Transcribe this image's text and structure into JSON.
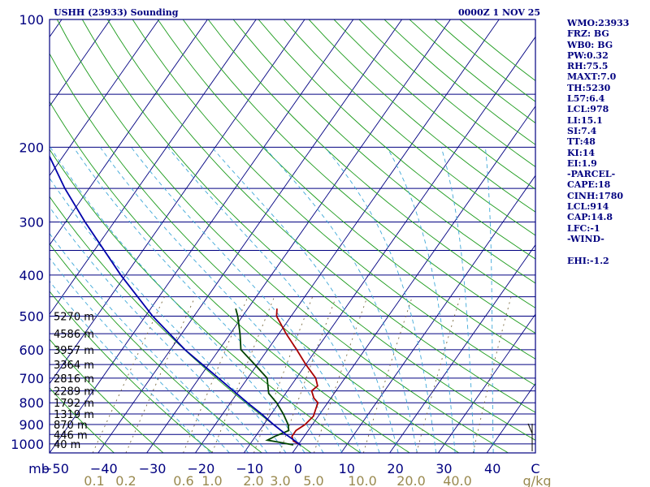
{
  "header": {
    "station_title": "USHH (23933) Sounding",
    "time": "0000Z  1 NOV 25"
  },
  "indices": [
    "WMO:23933",
    "FRZ: BG",
    "WB0: BG",
    "PW:0.32",
    "RH:75.5",
    "MAXT:7.0",
    "TH:5230",
    "L57:6.4",
    "LCL:978",
    "LI:15.1",
    "SI:7.4",
    "TT:48",
    "KI:14",
    "EI:1.9",
    "-PARCEL-",
    "CAPE:18",
    "CINH:1780",
    "LCL:914",
    "CAP:14.8",
    "LFC:-1",
    "-WIND-",
    "",
    "EHI:-1.2"
  ],
  "colors": {
    "frame": "#000080",
    "isobar": "#000080",
    "isotherm": "#000080",
    "dry_adiabat": "#1a9a1a",
    "moist_adiabat": "#3fa8d8",
    "mixing_ratio": "#7a6a40",
    "temperature": "#aa0000",
    "dewpoint": "#004400",
    "parcel": "#0000aa"
  },
  "chart_data": {
    "type": "line",
    "title": "USHH (23933) Sounding",
    "y_scale": "log",
    "y_axis_label": "mb",
    "x_axis_label": "C",
    "pressure_ticks": [
      100,
      200,
      300,
      400,
      500,
      600,
      700,
      800,
      900,
      1000
    ],
    "temperature_ticks": [
      "−50",
      "−40",
      "−30",
      "−20",
      "−10",
      "0",
      "10",
      "20",
      "30",
      "40"
    ],
    "mixing_ratio_ticks": [
      "0.1",
      "0.2",
      "0.6",
      "1.0",
      "2.0",
      "3.0",
      "5.0",
      "10.0",
      "20.0",
      "40.0"
    ],
    "mixing_ratio_unit": "g/kg",
    "height_labels": [
      {
        "p": 500,
        "label": "5270 m"
      },
      {
        "p": 550,
        "label": "4586 m"
      },
      {
        "p": 600,
        "label": "3957 m"
      },
      {
        "p": 650,
        "label": "3364 m"
      },
      {
        "p": 700,
        "label": "2816 m"
      },
      {
        "p": 750,
        "label": "2289 m"
      },
      {
        "p": 800,
        "label": "1792 m"
      },
      {
        "p": 850,
        "label": "1319 m"
      },
      {
        "p": 900,
        "label": "870 m"
      },
      {
        "p": 950,
        "label": "446 m"
      },
      {
        "p": 1000,
        "label": "40 m"
      }
    ],
    "series": [
      {
        "name": "Temperature",
        "points": [
          [
            1005,
            0.5
          ],
          [
            985,
            -1.5
          ],
          [
            960,
            -2.5
          ],
          [
            930,
            -2.5
          ],
          [
            900,
            -1.5
          ],
          [
            860,
            -1.0
          ],
          [
            830,
            -1.5
          ],
          [
            800,
            -2.0
          ],
          [
            780,
            -3.5
          ],
          [
            750,
            -5.0
          ],
          [
            730,
            -4.5
          ],
          [
            700,
            -6.0
          ],
          [
            650,
            -10.0
          ],
          [
            600,
            -14.0
          ],
          [
            550,
            -18.5
          ],
          [
            500,
            -23.0
          ],
          [
            480,
            -24.0
          ]
        ]
      },
      {
        "name": "Dewpoint",
        "points": [
          [
            1005,
            -1.0
          ],
          [
            990,
            -4.5
          ],
          [
            980,
            -7.0
          ],
          [
            960,
            -6.0
          ],
          [
            930,
            -4.0
          ],
          [
            900,
            -5.0
          ],
          [
            850,
            -7.5
          ],
          [
            800,
            -10.5
          ],
          [
            760,
            -13.5
          ],
          [
            700,
            -16.0
          ],
          [
            650,
            -20.5
          ],
          [
            600,
            -25.5
          ],
          [
            550,
            -28.0
          ],
          [
            500,
            -31.0
          ],
          [
            480,
            -32.5
          ]
        ]
      },
      {
        "name": "Parcel",
        "points": [
          [
            1005,
            0.5
          ],
          [
            950,
            -4.0
          ],
          [
            900,
            -8.0
          ],
          [
            850,
            -12.0
          ],
          [
            800,
            -16.5
          ],
          [
            700,
            -26.0
          ],
          [
            600,
            -37.0
          ],
          [
            500,
            -48.5
          ],
          [
            400,
            -61.0
          ],
          [
            300,
            -76.0
          ],
          [
            250,
            -85.0
          ],
          [
            200,
            -95.0
          ],
          [
            150,
            -110.0
          ],
          [
            125,
            -120.0
          ]
        ]
      }
    ],
    "x_range": [
      -50,
      50
    ],
    "y_range": [
      100,
      1050
    ],
    "grid": true
  }
}
